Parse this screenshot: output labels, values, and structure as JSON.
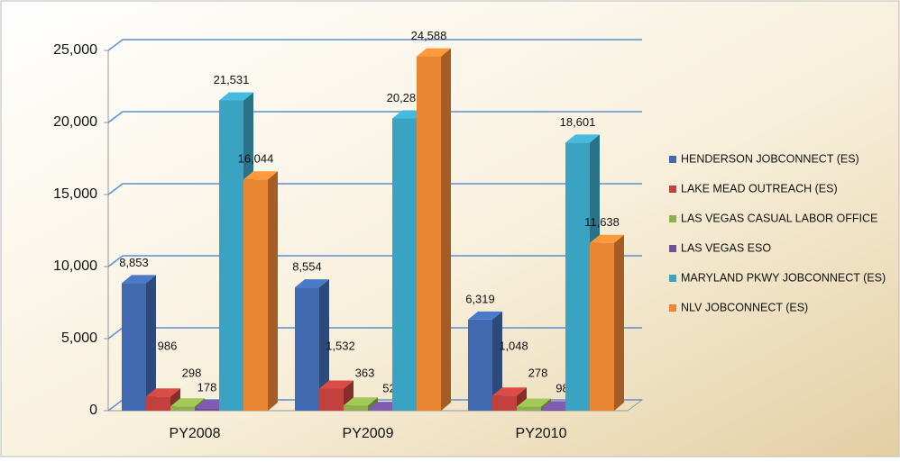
{
  "chart_data": {
    "type": "bar3d",
    "categories": [
      "PY2008",
      "PY2009",
      "PY2010"
    ],
    "series": [
      {
        "name": "HENDERSON JOBCONNECT (ES)",
        "color": "#4069b0",
        "values": [
          8853,
          8554,
          6319
        ],
        "value_labels": [
          "8,853",
          "8,554",
          "6,319"
        ]
      },
      {
        "name": "LAKE MEAD OUTREACH (ES)",
        "color": "#c0413e",
        "values": [
          986,
          1532,
          1048
        ],
        "value_labels": [
          "986",
          "1,532",
          "1,048"
        ]
      },
      {
        "name": "LAS VEGAS CASUAL LABOR OFFICE",
        "color": "#8db04c",
        "values": [
          298,
          363,
          278
        ],
        "value_labels": [
          "298",
          "363",
          "278"
        ]
      },
      {
        "name": "LAS VEGAS ESO",
        "color": "#6f4f98",
        "values": [
          178,
          52,
          98
        ],
        "value_labels": [
          "178",
          "52",
          "98"
        ]
      },
      {
        "name": "MARYLAND PKWY JOBCONNECT (ES)",
        "color": "#3ba3c2",
        "values": [
          21531,
          20281,
          18601
        ],
        "value_labels": [
          "21,531",
          "20,281",
          "18,601"
        ]
      },
      {
        "name": "NLV JOBCONNECT (ES)",
        "color": "#ea8533",
        "values": [
          16044,
          24588,
          11638
        ],
        "value_labels": [
          "16,044",
          "24,588",
          "11,638"
        ]
      }
    ],
    "ylim": [
      0,
      25000
    ],
    "yticks": [
      0,
      {
        "value": 5000,
        "label": "5,000"
      },
      {
        "value": 10000,
        "label": "10,000"
      },
      {
        "value": 15000,
        "label": "15,000"
      },
      {
        "value": 20000,
        "label": "20,000"
      },
      {
        "value": 25000,
        "label": "25,000"
      }
    ],
    "grid": true,
    "legend": "right"
  }
}
